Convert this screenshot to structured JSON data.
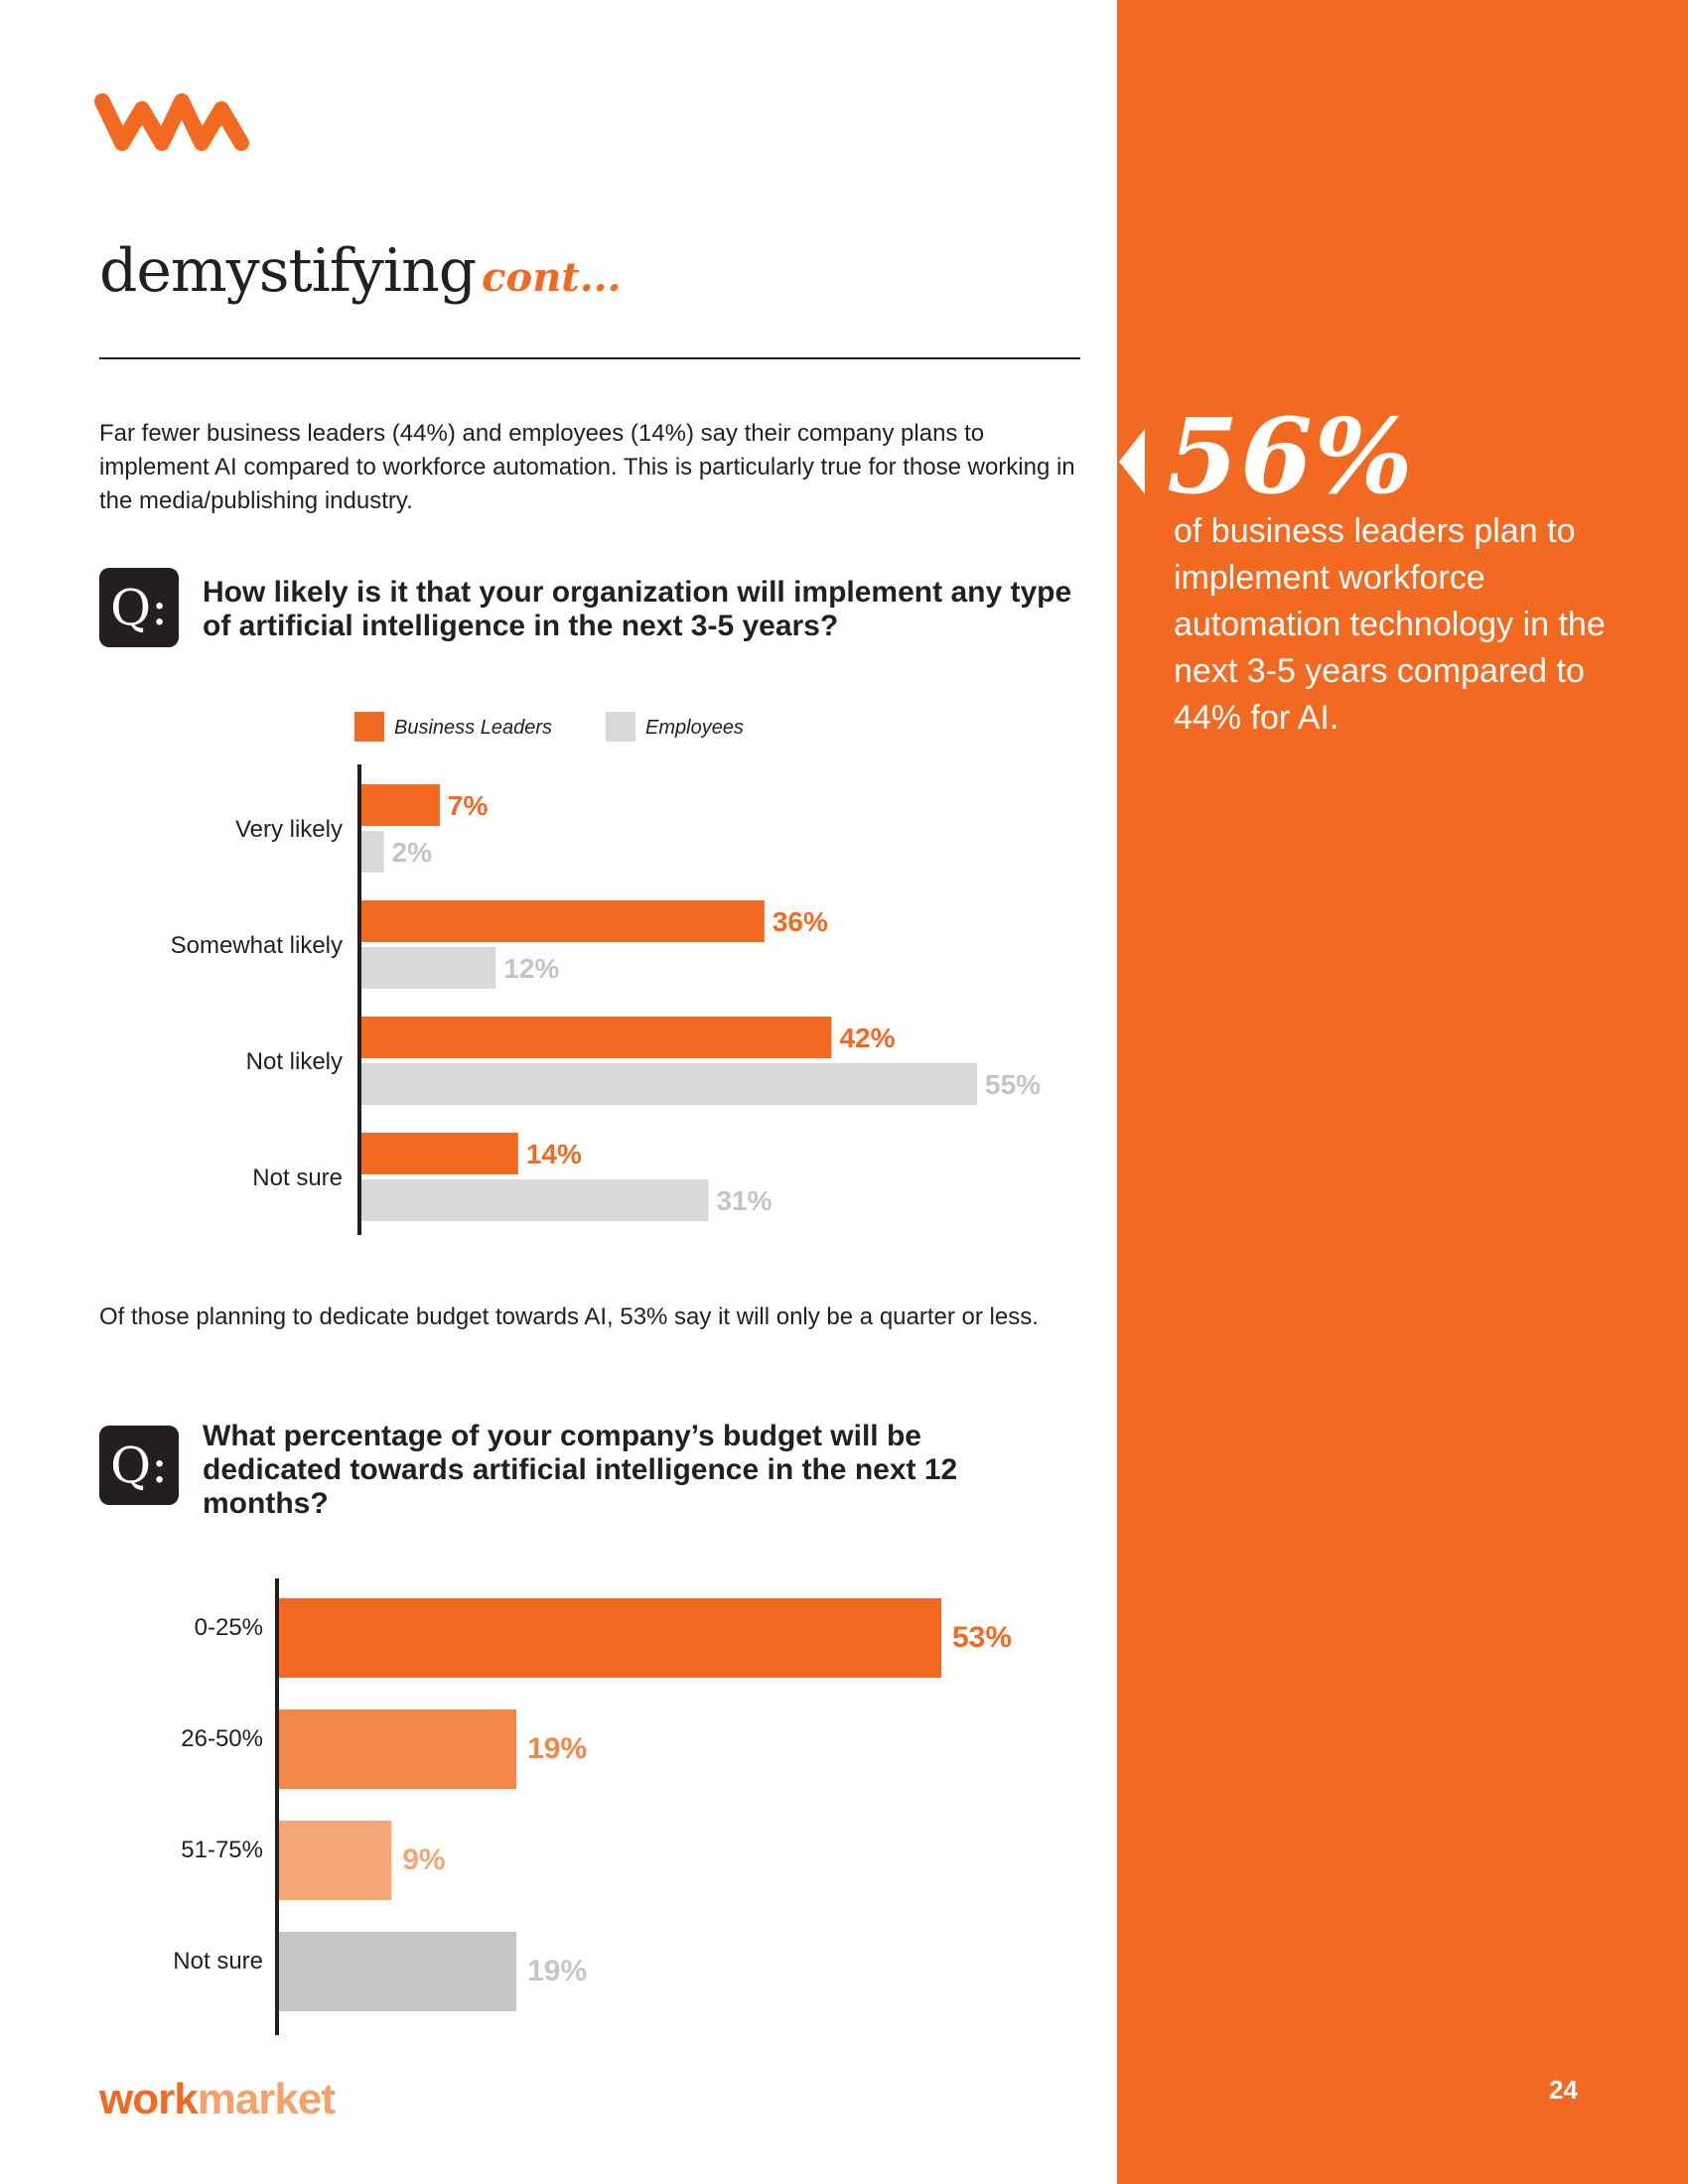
{
  "header": {
    "title": "demystifying",
    "title_suffix": "cont..."
  },
  "intro_text": "Far fewer business leaders (44%) and employees (14%) say their company plans to implement AI compared to workforce automation. This is particularly true for those working in the media/publishing industry.",
  "question_1": {
    "badge": "Q:",
    "text": "How likely is it that your organization will implement any type of artificial intelligence in the next 3-5 years?"
  },
  "budget_intro": "Of those planning to dedicate budget towards AI, 53% say it will only be a quarter or less.",
  "question_2": {
    "badge": "Q:",
    "text": "What percentage of your company’s budget will be dedicated towards artificial intelligence in the next 12 months?"
  },
  "sidebar": {
    "stat_value": "56%",
    "stat_text": "of business leaders plan to implement workforce automation technology in the next 3-5 years compared to 44% for AI."
  },
  "footer": {
    "brand_part1": "work",
    "brand_part2": "market",
    "page_number": "24"
  },
  "colors": {
    "accent": "#f26a21",
    "employees": "#d9d9d9",
    "employees_label": "#c4c4c4",
    "dark": "#231f20"
  },
  "icons": {
    "logo": "wm-logo-icon",
    "arrow": "triangle-left-icon"
  },
  "chart_data": [
    {
      "type": "bar",
      "orientation": "horizontal",
      "categories": [
        "Very likely",
        "Somewhat likely",
        "Not likely",
        "Not sure"
      ],
      "series": [
        {
          "name": "Business Leaders",
          "values": [
            7,
            36,
            42,
            14
          ],
          "color": "#f26a21"
        },
        {
          "name": "Employees",
          "values": [
            2,
            12,
            55,
            31
          ],
          "color": "#d9d9d9"
        }
      ],
      "value_suffix": "%",
      "xlim": [
        0,
        55
      ],
      "legend_position": "top",
      "grid": false
    },
    {
      "type": "bar",
      "orientation": "horizontal",
      "categories": [
        "0-25%",
        "26-50%",
        "51-75%",
        "Not sure"
      ],
      "values": [
        53,
        19,
        9,
        19
      ],
      "bar_colors": [
        "#f26a21",
        "#f3874a",
        "#f5a676",
        "#c6c6c8"
      ],
      "label_colors": [
        "#f26a21",
        "#f3874a",
        "#f5a676",
        "#c6c6c8"
      ],
      "value_suffix": "%",
      "xlim": [
        0,
        53
      ],
      "grid": false
    }
  ]
}
